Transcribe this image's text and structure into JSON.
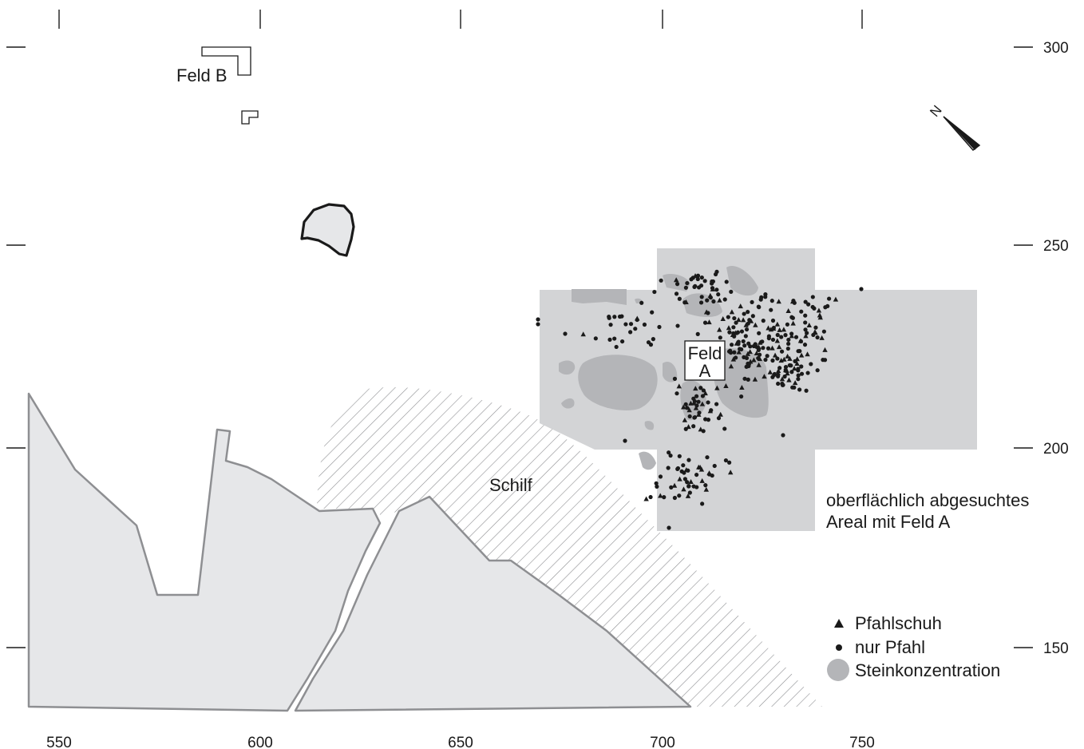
{
  "map": {
    "x_axis": {
      "tick_labels": [
        "550",
        "600",
        "650",
        "700",
        "750"
      ]
    },
    "y_axis": {
      "tick_labels": [
        "300",
        "250",
        "200",
        "150"
      ]
    },
    "labels": {
      "feld_b": "Feld B",
      "feld_a_line1": "Feld",
      "feld_a_line2": "A",
      "schilf": "Schilf",
      "surveyed_area_line1": "oberflächlich abgesuchtes",
      "surveyed_area_line2": "Areal mit Feld A",
      "north": "N"
    },
    "legend": {
      "items": [
        {
          "symbol": "triangle",
          "label": "Pfahlschuh"
        },
        {
          "symbol": "dot",
          "label": "nur Pfahl"
        },
        {
          "symbol": "disc",
          "label": "Steinkonzentration"
        }
      ]
    },
    "colors": {
      "surveyed_area": "#d3d4d6",
      "stone_concentration": "#b4b5b8",
      "terrain": "#e6e7e9",
      "terrain_outline": "#8e8f92",
      "ink": "#1a1a1a"
    }
  }
}
